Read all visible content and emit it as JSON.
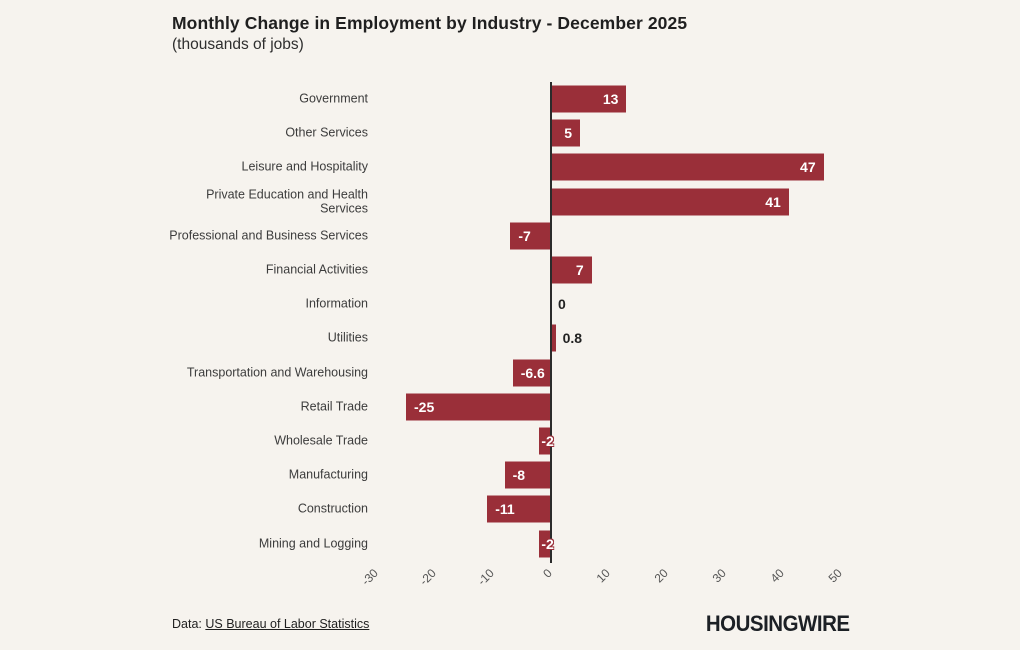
{
  "page": {
    "background": "#F6F3EE"
  },
  "header": {
    "title": "Monthly Change in Employment by Industry - December 2025",
    "subtitle": "(thousands of jobs)"
  },
  "chart_data": {
    "type": "bar",
    "orientation": "horizontal",
    "title": "Monthly Change in Employment by Industry - December 2025",
    "subtitle": "(thousands of jobs)",
    "categories": [
      "Government",
      "Other Services",
      "Leisure and Hospitality",
      "Private Education and Health Services",
      "Professional and Business Services",
      "Financial Activities",
      "Information",
      "Utilities",
      "Transportation and Warehousing",
      "Retail Trade",
      "Wholesale Trade",
      "Manufacturing",
      "Construction",
      "Mining and Logging"
    ],
    "values": [
      13,
      5,
      47,
      41,
      -7,
      7,
      0,
      0.8,
      -6.6,
      -25,
      -2,
      -8,
      -11,
      -2
    ],
    "value_labels": [
      "13",
      "5",
      "47",
      "41",
      "-7",
      "7",
      "0",
      "0.8",
      "-6.6",
      "-25",
      "-2",
      "-8",
      "-11",
      "-2"
    ],
    "xlabel": "",
    "ylabel": "",
    "xlim": [
      -30,
      50
    ],
    "x_ticks": [
      -30,
      -20,
      -10,
      0,
      10,
      20,
      30,
      40,
      50
    ],
    "grid": false,
    "legend": false,
    "bar_color": "#9A2F39",
    "axis_color": "#2B2B2B",
    "category_label_color": "#3C3C3C",
    "tick_label_color": "#555555",
    "inside_value_label_color": "#FFFFFF",
    "outside_value_label_color": "#222222"
  },
  "footer": {
    "source_prefix": "Data:",
    "source_link_text": "US Bureau of Labor Statistics",
    "brand": "HOUSINGWIRE"
  }
}
